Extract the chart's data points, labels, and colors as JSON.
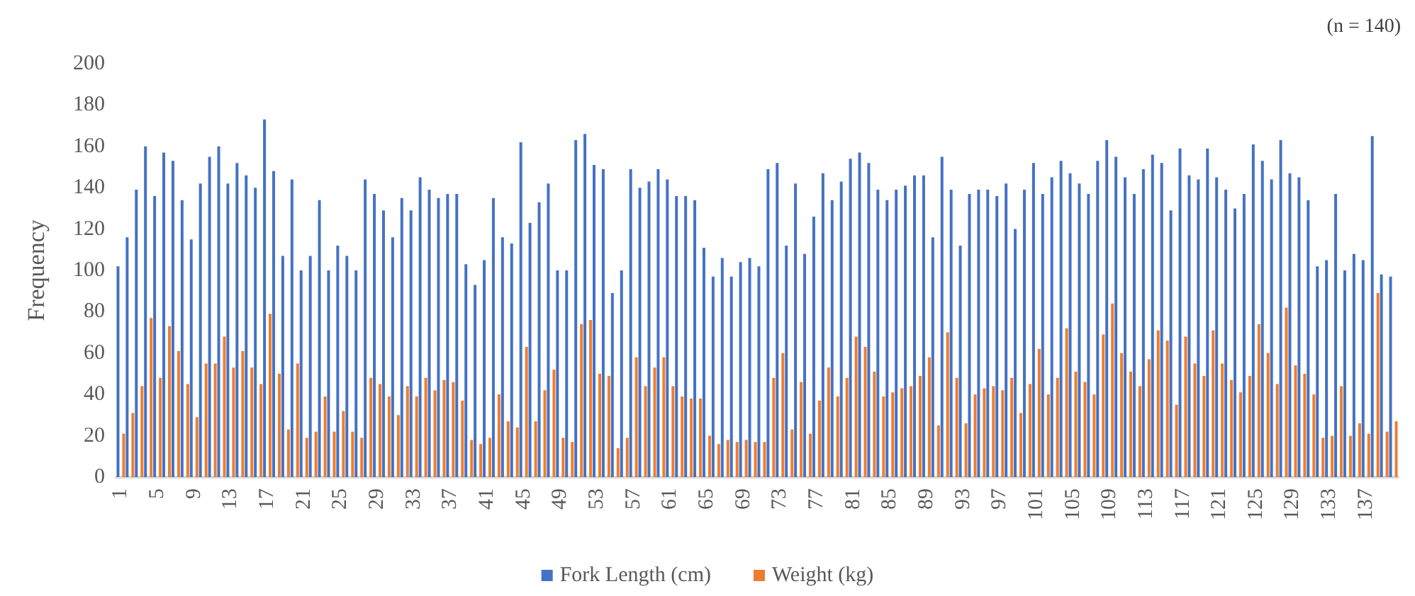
{
  "chart_data": {
    "type": "bar",
    "ylabel": "Frequency",
    "annotations": [
      "(n = 140)"
    ],
    "categories": [
      "1",
      null,
      null,
      null,
      "5",
      null,
      null,
      null,
      "9",
      null,
      null,
      null,
      "13",
      null,
      null,
      null,
      "17",
      null,
      null,
      null,
      "21",
      null,
      null,
      null,
      "25",
      null,
      null,
      null,
      "29",
      null,
      null,
      null,
      "33",
      null,
      null,
      null,
      "37",
      null,
      null,
      null,
      "41",
      null,
      null,
      null,
      "45",
      null,
      null,
      null,
      "49",
      null,
      null,
      null,
      "53",
      null,
      null,
      null,
      "57",
      null,
      null,
      null,
      "61",
      null,
      null,
      null,
      "65",
      null,
      null,
      null,
      "69",
      null,
      null,
      null,
      "73",
      null,
      null,
      null,
      "77",
      null,
      null,
      null,
      "81",
      null,
      null,
      null,
      "85",
      null,
      null,
      null,
      "89",
      null,
      null,
      null,
      "93",
      null,
      null,
      null,
      "97",
      null,
      null,
      null,
      "101",
      null,
      null,
      null,
      "105",
      null,
      null,
      null,
      "109",
      null,
      null,
      null,
      "113",
      null,
      null,
      null,
      "117",
      null,
      null,
      null,
      "121",
      null,
      null,
      null,
      "125",
      null,
      null,
      null,
      "129",
      null,
      null,
      null,
      "133",
      null,
      null,
      null,
      "137",
      null,
      null,
      null
    ],
    "series": [
      {
        "name": "Fork Length (cm)",
        "color": "#4472c4",
        "values": [
          102,
          116,
          139,
          160,
          136,
          157,
          153,
          134,
          115,
          142,
          155,
          160,
          142,
          152,
          146,
          140,
          173,
          148,
          107,
          144,
          100,
          107,
          134,
          100,
          112,
          107,
          100,
          144,
          137,
          129,
          116,
          135,
          129,
          145,
          139,
          135,
          137,
          137,
          103,
          93,
          105,
          135,
          116,
          113,
          162,
          123,
          133,
          142,
          100,
          100,
          163,
          166,
          151,
          149,
          89,
          100,
          149,
          140,
          143,
          149,
          144,
          136,
          136,
          134,
          111,
          97,
          106,
          97,
          104,
          106,
          102,
          149,
          152,
          112,
          142,
          108,
          126,
          147,
          134,
          143,
          154,
          157,
          152,
          139,
          134,
          139,
          141,
          146,
          146,
          116,
          155,
          139,
          112,
          137,
          139,
          139,
          136,
          142,
          120,
          139,
          152,
          137,
          145,
          153,
          147,
          142,
          137,
          153,
          163,
          155,
          145,
          137,
          149,
          156,
          152,
          129,
          159,
          146,
          144,
          159,
          145,
          139,
          130,
          137,
          161,
          153,
          144,
          163,
          147,
          145,
          134,
          102,
          105,
          137,
          100,
          108,
          105,
          165,
          98,
          97
        ]
      },
      {
        "name": "Weight (kg)",
        "color": "#ed7d31",
        "values": [
          21,
          31,
          44,
          77,
          48,
          73,
          61,
          45,
          29,
          55,
          55,
          68,
          53,
          61,
          53,
          45,
          79,
          50,
          23,
          55,
          19,
          22,
          39,
          22,
          32,
          22,
          19,
          48,
          45,
          39,
          30,
          44,
          39,
          48,
          42,
          47,
          46,
          37,
          18,
          16,
          19,
          40,
          27,
          24,
          63,
          27,
          42,
          52,
          19,
          17,
          74,
          76,
          50,
          49,
          14,
          19,
          58,
          44,
          53,
          58,
          44,
          39,
          38,
          38,
          20,
          16,
          18,
          17,
          18,
          17,
          17,
          48,
          60,
          23,
          46,
          21,
          37,
          53,
          39,
          48,
          68,
          63,
          51,
          39,
          41,
          43,
          44,
          49,
          58,
          25,
          70,
          48,
          26,
          40,
          43,
          44,
          42,
          48,
          31,
          45,
          62,
          40,
          48,
          72,
          51,
          46,
          40,
          69,
          84,
          60,
          51,
          44,
          57,
          71,
          66,
          35,
          68,
          55,
          49,
          71,
          55,
          47,
          41,
          49,
          74,
          60,
          45,
          82,
          54,
          50,
          40,
          19,
          20,
          44,
          20,
          26,
          21,
          89,
          22,
          27
        ]
      }
    ],
    "ylim": [
      0,
      200
    ],
    "yticks": [
      0,
      20,
      40,
      60,
      80,
      100,
      120,
      140,
      160,
      180,
      200
    ],
    "grid": false,
    "legend": "bottom"
  }
}
